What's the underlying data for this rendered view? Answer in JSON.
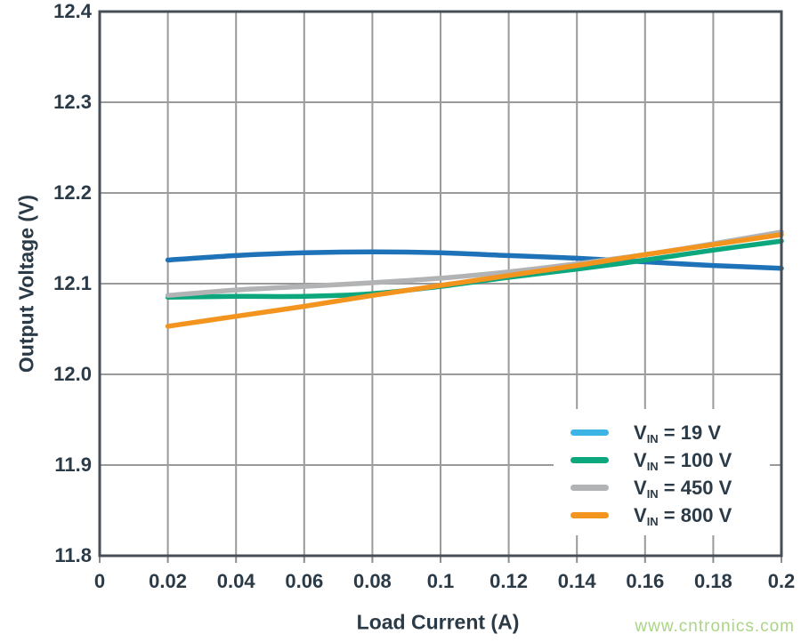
{
  "style": {
    "background": "#ffffff",
    "text_color": "#2b3a47",
    "grid_color": "#9a9a9a",
    "border_color": "#474e55",
    "tick_color": "#8a8e92"
  },
  "watermark": {
    "text": "www.cntronics.com",
    "color": "#abd487"
  },
  "chart_data": {
    "type": "line",
    "title": "",
    "xlabel": "Load Current (A)",
    "ylabel": "Output Voltage (V)",
    "xlim": [
      0,
      0.2
    ],
    "ylim": [
      11.8,
      12.4
    ],
    "grid": true,
    "legend_position": "lower right",
    "x_tick_labels": [
      "0",
      "0.02",
      "0.04",
      "0.06",
      "0.08",
      "0.1",
      "0.12",
      "0.14",
      "0.16",
      "0.18",
      "0.2"
    ],
    "x_tick_values": [
      0,
      0.02,
      0.04,
      0.06,
      0.08,
      0.1,
      0.12,
      0.14,
      0.16,
      0.18,
      0.2
    ],
    "y_tick_labels": [
      "12.4",
      "12.3",
      "12.2",
      "12.1",
      "12.0",
      "11.9",
      "11.8"
    ],
    "y_tick_values": [
      12.4,
      12.3,
      12.2,
      12.1,
      12.0,
      11.9,
      11.8
    ],
    "x": [
      0.02,
      0.04,
      0.06,
      0.08,
      0.1,
      0.12,
      0.14,
      0.16,
      0.18,
      0.2
    ],
    "series": [
      {
        "id": "vin-19",
        "name": "VIN = 19 V",
        "legend": {
          "base": "V",
          "sub": "IN",
          "rest": " = 19 V"
        },
        "line_color": "#1e72b8",
        "swatch_color": "#3cb4e5",
        "values": [
          12.126,
          12.131,
          12.134,
          12.135,
          12.134,
          12.131,
          12.128,
          12.124,
          12.12,
          12.117
        ]
      },
      {
        "id": "vin-100",
        "name": "VIN = 100 V",
        "legend": {
          "base": "V",
          "sub": "IN",
          "rest": " = 100 V"
        },
        "line_color": "#0ca77d",
        "swatch_color": "#0ca77d",
        "values": [
          12.085,
          12.086,
          12.086,
          12.089,
          12.097,
          12.107,
          12.116,
          12.126,
          12.137,
          12.147
        ]
      },
      {
        "id": "vin-450",
        "name": "VIN = 450 V",
        "legend": {
          "base": "V",
          "sub": "IN",
          "rest": " = 450 V"
        },
        "line_color": "#b1b3b5",
        "swatch_color": "#b1b3b5",
        "values": [
          12.087,
          12.093,
          12.097,
          12.101,
          12.106,
          12.113,
          12.122,
          12.132,
          12.144,
          12.157
        ]
      },
      {
        "id": "vin-800",
        "name": "VIN = 800 V",
        "legend": {
          "base": "V",
          "sub": "IN",
          "rest": " = 800 V"
        },
        "line_color": "#f3941f",
        "swatch_color": "#f3941f",
        "values": [
          12.053,
          12.064,
          12.075,
          12.087,
          12.098,
          12.109,
          12.12,
          12.132,
          12.143,
          12.154
        ]
      }
    ]
  }
}
